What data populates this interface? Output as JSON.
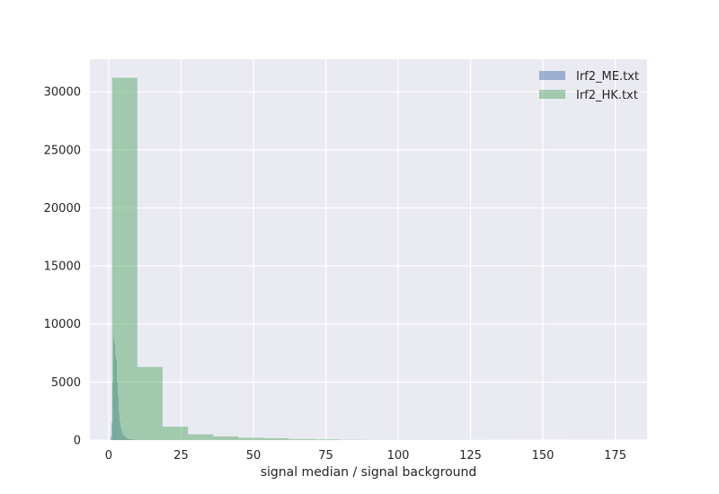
{
  "chart_data": {
    "type": "bar",
    "xlabel": "signal median / signal background",
    "ylabel": "",
    "xlim": [
      -6.5,
      186
    ],
    "ylim": [
      0,
      32800
    ],
    "grid": true,
    "legend_position": "top-right",
    "xticks": [
      {
        "value": 0,
        "label": "0"
      },
      {
        "value": 25,
        "label": "25"
      },
      {
        "value": 50,
        "label": "50"
      },
      {
        "value": 75,
        "label": "75"
      },
      {
        "value": 100,
        "label": "100"
      },
      {
        "value": 125,
        "label": "125"
      },
      {
        "value": 150,
        "label": "150"
      },
      {
        "value": 175,
        "label": "175"
      }
    ],
    "yticks": [
      {
        "value": 0,
        "label": "0"
      },
      {
        "value": 5000,
        "label": "5000"
      },
      {
        "value": 10000,
        "label": "10000"
      },
      {
        "value": 15000,
        "label": "15000"
      },
      {
        "value": 20000,
        "label": "20000"
      },
      {
        "value": 25000,
        "label": "25000"
      },
      {
        "value": 30000,
        "label": "30000"
      }
    ],
    "series": [
      {
        "name": "Irf2_ME.txt",
        "color": "#4c72b0",
        "opacity": 0.5,
        "bins": [
          {
            "x0": 0.4,
            "x1": 0.7,
            "count": 40
          },
          {
            "x0": 0.7,
            "x1": 1.0,
            "count": 300
          },
          {
            "x0": 1.0,
            "x1": 1.3,
            "count": 1500
          },
          {
            "x0": 1.3,
            "x1": 1.6,
            "count": 5000
          },
          {
            "x0": 1.6,
            "x1": 1.9,
            "count": 8700
          },
          {
            "x0": 1.9,
            "x1": 2.2,
            "count": 8300
          },
          {
            "x0": 2.2,
            "x1": 2.5,
            "count": 7200
          },
          {
            "x0": 2.5,
            "x1": 2.8,
            "count": 6900
          },
          {
            "x0": 2.8,
            "x1": 3.1,
            "count": 5000
          },
          {
            "x0": 3.1,
            "x1": 3.4,
            "count": 3800
          },
          {
            "x0": 3.4,
            "x1": 3.7,
            "count": 2400
          },
          {
            "x0": 3.7,
            "x1": 4.0,
            "count": 1600
          },
          {
            "x0": 4.0,
            "x1": 4.3,
            "count": 1100
          },
          {
            "x0": 4.3,
            "x1": 4.6,
            "count": 800
          },
          {
            "x0": 4.6,
            "x1": 4.9,
            "count": 600
          },
          {
            "x0": 4.9,
            "x1": 5.5,
            "count": 400
          },
          {
            "x0": 5.5,
            "x1": 6.1,
            "count": 250
          },
          {
            "x0": 6.1,
            "x1": 7.0,
            "count": 130
          },
          {
            "x0": 7.0,
            "x1": 8.5,
            "count": 60
          },
          {
            "x0": 8.5,
            "x1": 10.5,
            "count": 20
          }
        ]
      },
      {
        "name": "Irf2_HK.txt",
        "color": "#55a868",
        "opacity": 0.5,
        "bins": [
          {
            "x0": 1.2,
            "x1": 9.9,
            "count": 31200
          },
          {
            "x0": 9.9,
            "x1": 18.6,
            "count": 6300
          },
          {
            "x0": 18.6,
            "x1": 27.4,
            "count": 1150
          },
          {
            "x0": 27.4,
            "x1": 36.1,
            "count": 500
          },
          {
            "x0": 36.1,
            "x1": 44.8,
            "count": 320
          },
          {
            "x0": 44.8,
            "x1": 53.5,
            "count": 200
          },
          {
            "x0": 53.5,
            "x1": 62.2,
            "count": 160
          },
          {
            "x0": 62.2,
            "x1": 71.0,
            "count": 90
          },
          {
            "x0": 71.0,
            "x1": 79.7,
            "count": 60
          },
          {
            "x0": 79.7,
            "x1": 88.4,
            "count": 30
          },
          {
            "x0": 88.4,
            "x1": 97.1,
            "count": 20
          },
          {
            "x0": 97.1,
            "x1": 105.8,
            "count": 15
          },
          {
            "x0": 105.8,
            "x1": 114.6,
            "count": 12
          },
          {
            "x0": 114.6,
            "x1": 123.3,
            "count": 10
          },
          {
            "x0": 123.3,
            "x1": 132.0,
            "count": 8
          },
          {
            "x0": 132.0,
            "x1": 140.7,
            "count": 6
          },
          {
            "x0": 140.7,
            "x1": 149.4,
            "count": 5
          },
          {
            "x0": 149.4,
            "x1": 158.2,
            "count": 0
          },
          {
            "x0": 158.2,
            "x1": 166.9,
            "count": 4
          },
          {
            "x0": 166.9,
            "x1": 175.6,
            "count": 5
          }
        ]
      }
    ]
  }
}
